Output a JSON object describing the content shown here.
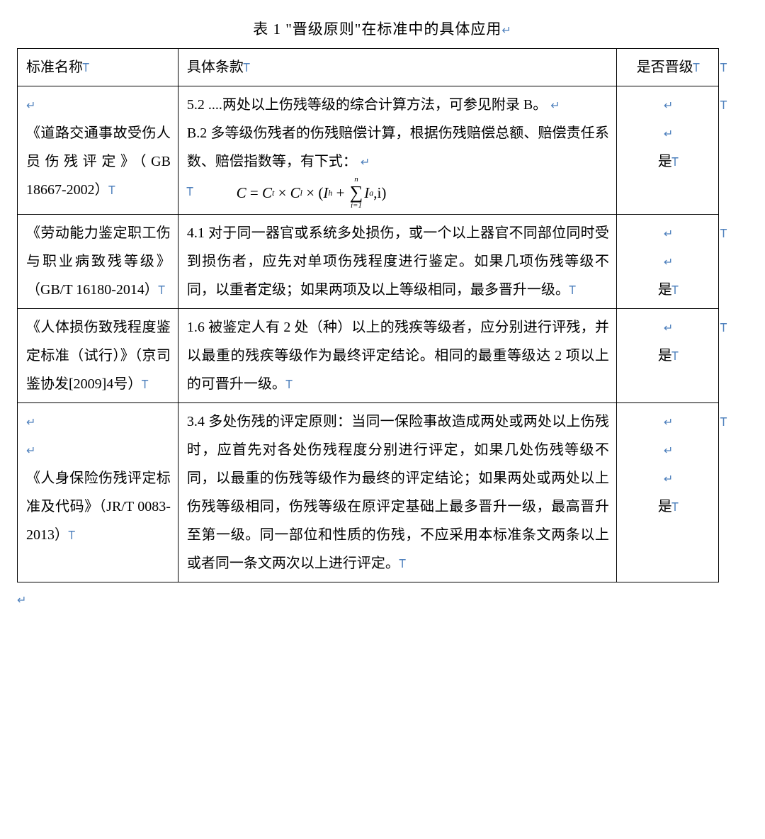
{
  "glyph": {
    "para": "Ꭲ",
    "ret": "↵"
  },
  "caption": "表 1  \"晋级原则\"在标准中的具体应用",
  "header": {
    "c1": "标准名称",
    "c2": "具体条款",
    "c3": "是否晋级"
  },
  "rows": [
    {
      "c1_lines": [
        "",
        "《道路交通事故受伤人员伤残评定》（GB 18667-2002）"
      ],
      "c2_line1": "5.2 ....两处以上伤残等级的综合计算方法，可参见附录 B。",
      "c2_line2": "B.2 多等级伤残者的伤残赔偿计算，根据伤残赔偿总额、赔偿责任系数、赔偿指数等，有下式：",
      "has_formula": true,
      "formula": {
        "lhs": "C",
        "eq": "=",
        "t1": "C",
        "t1s": "t",
        "times": "×",
        "t2": "C",
        "t2s": "l",
        "t3": "I",
        "t3s": "h",
        "plus": "+",
        "sigma_top": "n",
        "sigma_bot": "i=1",
        "t4": "I",
        "t4s": "a",
        "comma_i": ",i",
        "open": "(",
        "close": ")"
      },
      "c3_pre_rets": 2,
      "c3_val": "是"
    },
    {
      "c1_lines": [
        "《劳动能力鉴定职工伤与职业病致残等级》（GB/T 16180-2014）"
      ],
      "c1_wide": true,
      "c2_line1": "4.1 对于同一器官或系统多处损伤，或一个以上器官不同部位同时受到损伤者，应先对单项伤残程度进行鉴定。如果几项伤残等级不同，以重者定级；如果两项及以上等级相同，最多晋升一级。",
      "c3_pre_rets": 2,
      "c3_val": "是"
    },
    {
      "c1_lines": [
        "《人体损伤致残程度鉴定标准（试行）》（京司鉴协发[2009]4号）"
      ],
      "c2_line1": "1.6 被鉴定人有 2 处（种）以上的残疾等级者，应分别进行评残，并以最重的残疾等级作为最终评定结论。相同的最重等级达 2 项以上的可晋升一级。",
      "c3_pre_rets": 1,
      "c3_val": "是"
    },
    {
      "c1_lines": [
        "",
        "",
        "《人身保险伤残评定标准及代码》（JR/T 0083-2013）"
      ],
      "c2_line1": "3.4 多处伤残的评定原则：当同一保险事故造成两处或两处以上伤残时，应首先对各处伤残程度分别进行评定，如果几处伤残等级不同，以最重的伤残等级作为最终的评定结论；如果两处或两处以上伤残等级相同，伤残等级在原评定基础上最多晋升一级，最高晋升至第一级。同一部位和性质的伤残，不应采用本标准条文两条以上或者同一条文两次以上进行评定。",
      "c3_pre_rets": 3,
      "c3_val": "是"
    }
  ]
}
